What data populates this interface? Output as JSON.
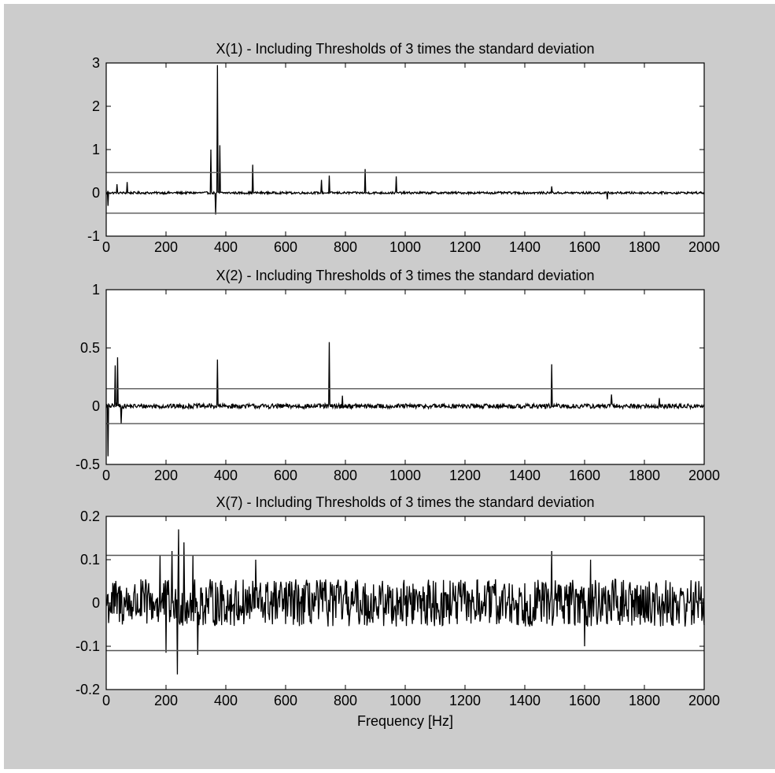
{
  "figure": {
    "background": "#cccccc",
    "axes_background": "#ffffff",
    "line_color": "#000000",
    "threshold_color": "#555555"
  },
  "chart_data": [
    {
      "type": "line",
      "title": "X(1) - Including Thresholds of 3 times the standard deviation",
      "xlabel": "",
      "ylabel": "",
      "xlim": [
        0,
        2000
      ],
      "ylim": [
        -1,
        3
      ],
      "xticks": [
        0,
        200,
        400,
        600,
        800,
        1000,
        1200,
        1400,
        1600,
        1800,
        2000
      ],
      "yticks": [
        -1,
        0,
        1,
        2,
        3
      ],
      "thresholds": [
        0.47,
        -0.47
      ],
      "noise_amplitude": 0.025,
      "peaks": [
        {
          "x": 5,
          "y": -0.3
        },
        {
          "x": 35,
          "y": 0.2
        },
        {
          "x": 70,
          "y": 0.25
        },
        {
          "x": 350,
          "y": 1.0
        },
        {
          "x": 365,
          "y": -0.5
        },
        {
          "x": 372,
          "y": 2.95
        },
        {
          "x": 380,
          "y": 1.1
        },
        {
          "x": 490,
          "y": 0.65
        },
        {
          "x": 720,
          "y": 0.3
        },
        {
          "x": 745,
          "y": 0.4
        },
        {
          "x": 865,
          "y": 0.55
        },
        {
          "x": 970,
          "y": 0.38
        },
        {
          "x": 1490,
          "y": 0.15
        },
        {
          "x": 1675,
          "y": -0.15
        }
      ]
    },
    {
      "type": "line",
      "title": "X(2) - Including Thresholds of 3 times the standard deviation",
      "xlabel": "",
      "ylabel": "",
      "xlim": [
        0,
        2000
      ],
      "ylim": [
        -0.5,
        1
      ],
      "xticks": [
        0,
        200,
        400,
        600,
        800,
        1000,
        1200,
        1400,
        1600,
        1800,
        2000
      ],
      "yticks": [
        -0.5,
        0,
        0.5,
        1
      ],
      "thresholds": [
        0.15,
        -0.15
      ],
      "noise_amplitude": 0.02,
      "peaks": [
        {
          "x": 5,
          "y": -0.43
        },
        {
          "x": 30,
          "y": 0.35
        },
        {
          "x": 38,
          "y": 0.42
        },
        {
          "x": 50,
          "y": -0.15
        },
        {
          "x": 372,
          "y": 0.4
        },
        {
          "x": 745,
          "y": 0.55
        },
        {
          "x": 790,
          "y": 0.09
        },
        {
          "x": 1490,
          "y": 0.36
        },
        {
          "x": 1690,
          "y": 0.1
        },
        {
          "x": 1850,
          "y": 0.07
        }
      ]
    },
    {
      "type": "line",
      "title": "X(7) - Including Thresholds of 3 times the standard deviation",
      "xlabel": "Frequency [Hz]",
      "ylabel": "",
      "xlim": [
        0,
        2000
      ],
      "ylim": [
        -0.2,
        0.2
      ],
      "xticks": [
        0,
        200,
        400,
        600,
        800,
        1000,
        1200,
        1400,
        1600,
        1800,
        2000
      ],
      "yticks": [
        -0.2,
        -0.1,
        0,
        0.1,
        0.2
      ],
      "thresholds": [
        0.11,
        -0.11
      ],
      "noise_amplitude": 0.055,
      "peaks": [
        {
          "x": 180,
          "y": 0.11
        },
        {
          "x": 200,
          "y": -0.115
        },
        {
          "x": 220,
          "y": 0.12
        },
        {
          "x": 238,
          "y": -0.165
        },
        {
          "x": 242,
          "y": 0.17
        },
        {
          "x": 260,
          "y": 0.14
        },
        {
          "x": 290,
          "y": 0.11
        },
        {
          "x": 305,
          "y": -0.12
        },
        {
          "x": 500,
          "y": 0.1
        },
        {
          "x": 1490,
          "y": 0.12
        },
        {
          "x": 1600,
          "y": -0.1
        },
        {
          "x": 1620,
          "y": 0.1
        }
      ]
    }
  ]
}
